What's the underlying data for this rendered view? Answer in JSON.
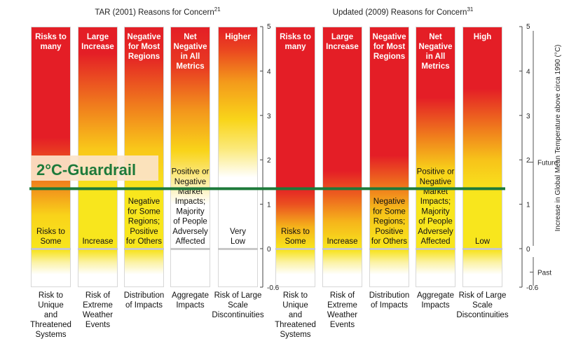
{
  "chart_data": {
    "type": "heatmap",
    "panels": [
      {
        "title": "TAR (2001) Reasons for Concern",
        "title_sup": "21",
        "columns": [
          {
            "label_lines": [
              "Risk to",
              "Unique",
              "and",
              "Threatened",
              "Systems"
            ],
            "top_text": [
              "Risks to",
              "many"
            ],
            "bottom_text": [
              "Risks to",
              "Some"
            ],
            "gradient": [
              {
                "t": 0.0,
                "c": "#e41e26"
              },
              {
                "t": 0.5,
                "c": "#e41e26"
              },
              {
                "t": 0.6,
                "c": "#eb4a1f"
              },
              {
                "t": 0.72,
                "c": "#f18c1c"
              },
              {
                "t": 0.85,
                "c": "#f9d31a"
              },
              {
                "t": 1.0,
                "c": "#f8e61d"
              }
            ]
          },
          {
            "label_lines": [
              "Risk of",
              "Extreme",
              "Weather",
              "Events"
            ],
            "top_text": [
              "Large",
              "Increase"
            ],
            "bottom_text": [
              "Increase"
            ],
            "gradient": [
              {
                "t": 0.0,
                "c": "#e41e26"
              },
              {
                "t": 0.12,
                "c": "#e41e26"
              },
              {
                "t": 0.35,
                "c": "#f07a1d"
              },
              {
                "t": 0.55,
                "c": "#f9c71a"
              },
              {
                "t": 0.75,
                "c": "#f8e61d"
              },
              {
                "t": 1.0,
                "c": "#f8e61d"
              }
            ]
          },
          {
            "label_lines": [
              "Distribution",
              "of Impacts"
            ],
            "top_text": [
              "Negative",
              "for Most",
              "Regions"
            ],
            "bottom_text": [
              "Negative",
              "for Some",
              "Regions;",
              "Positive",
              "for Others"
            ],
            "gradient": [
              {
                "t": 0.0,
                "c": "#e41e26"
              },
              {
                "t": 0.15,
                "c": "#e52a24"
              },
              {
                "t": 0.35,
                "c": "#f07a1d"
              },
              {
                "t": 0.55,
                "c": "#f9c71a"
              },
              {
                "t": 0.75,
                "c": "#f8e61d"
              },
              {
                "t": 1.0,
                "c": "#f8e61d"
              }
            ]
          },
          {
            "label_lines": [
              "Aggregate",
              "Impacts"
            ],
            "top_text": [
              "Net",
              "Negative",
              "in All",
              "Metrics"
            ],
            "bottom_text": [
              "Positive or",
              "Negative",
              "Market",
              "Impacts;",
              "Majority",
              "of People",
              "Adversely",
              "Affected"
            ],
            "gradient": [
              {
                "t": 0.0,
                "c": "#e41e26"
              },
              {
                "t": 0.18,
                "c": "#e83a22"
              },
              {
                "t": 0.38,
                "c": "#f3971c"
              },
              {
                "t": 0.56,
                "c": "#f9d41a"
              },
              {
                "t": 0.68,
                "c": "#fbe98a"
              },
              {
                "t": 0.8,
                "c": "#ffffff"
              },
              {
                "t": 1.0,
                "c": "#ffffff"
              }
            ]
          },
          {
            "label_lines": [
              "Risk of Large",
              "Scale",
              "Discontinuities"
            ],
            "top_text": [
              "Higher"
            ],
            "bottom_text": [
              "Very",
              "Low"
            ],
            "gradient": [
              {
                "t": 0.0,
                "c": "#e41e26"
              },
              {
                "t": 0.1,
                "c": "#ea4420"
              },
              {
                "t": 0.25,
                "c": "#f49a1b"
              },
              {
                "t": 0.42,
                "c": "#f9d51a"
              },
              {
                "t": 0.55,
                "c": "#fbe97a"
              },
              {
                "t": 0.68,
                "c": "#ffffff"
              },
              {
                "t": 1.0,
                "c": "#ffffff"
              }
            ]
          }
        ]
      },
      {
        "title": "Updated (2009) Reasons for Concern",
        "title_sup": "31",
        "columns": [
          {
            "label_lines": [
              "Risk to",
              "Unique",
              "and",
              "Threatened",
              "Systems"
            ],
            "top_text": [
              "Risks to",
              "many"
            ],
            "bottom_text": [
              "Risks to",
              "Some"
            ],
            "gradient": [
              {
                "t": 0.0,
                "c": "#e41e26"
              },
              {
                "t": 0.72,
                "c": "#e41e26"
              },
              {
                "t": 0.8,
                "c": "#eb5020"
              },
              {
                "t": 0.9,
                "c": "#f5b11b"
              },
              {
                "t": 1.0,
                "c": "#f8e61d"
              }
            ]
          },
          {
            "label_lines": [
              "Risk of",
              "Extreme",
              "Weather",
              "Events"
            ],
            "top_text": [
              "Large",
              "Increase"
            ],
            "bottom_text": [
              "Increase"
            ],
            "gradient": [
              {
                "t": 0.0,
                "c": "#e41e26"
              },
              {
                "t": 0.65,
                "c": "#e41e26"
              },
              {
                "t": 0.75,
                "c": "#ec5a1f"
              },
              {
                "t": 0.88,
                "c": "#f6b51b"
              },
              {
                "t": 1.0,
                "c": "#f8e61d"
              }
            ]
          },
          {
            "label_lines": [
              "Distribution",
              "of Impacts"
            ],
            "top_text": [
              "Negative",
              "for Most",
              "Regions"
            ],
            "bottom_text": [
              "Negative",
              "for Some",
              "Regions;",
              "Positive",
              "for Others"
            ],
            "gradient": [
              {
                "t": 0.0,
                "c": "#e41e26"
              },
              {
                "t": 0.58,
                "c": "#e41e26"
              },
              {
                "t": 0.7,
                "c": "#ee6a1e"
              },
              {
                "t": 0.84,
                "c": "#f7c41a"
              },
              {
                "t": 1.0,
                "c": "#f8e61d"
              }
            ]
          },
          {
            "label_lines": [
              "Aggregate",
              "Impacts"
            ],
            "top_text": [
              "Net",
              "Negative",
              "in All",
              "Metrics"
            ],
            "bottom_text": [
              "Positive or",
              "Negative",
              "Market",
              "Impacts;",
              "Majority",
              "of People",
              "Adversely",
              "Affected"
            ],
            "gradient": [
              {
                "t": 0.0,
                "c": "#e41e26"
              },
              {
                "t": 0.32,
                "c": "#e41e26"
              },
              {
                "t": 0.5,
                "c": "#f0801c"
              },
              {
                "t": 0.65,
                "c": "#f8d31a"
              },
              {
                "t": 0.8,
                "c": "#f8e61d"
              },
              {
                "t": 1.0,
                "c": "#f8e61d"
              }
            ]
          },
          {
            "label_lines": [
              "Risk of Large",
              "Scale",
              "Discontinuities"
            ],
            "top_text": [
              "High"
            ],
            "bottom_text": [
              "Low"
            ],
            "gradient": [
              {
                "t": 0.0,
                "c": "#e41e26"
              },
              {
                "t": 0.28,
                "c": "#e41e26"
              },
              {
                "t": 0.45,
                "c": "#ef761d"
              },
              {
                "t": 0.6,
                "c": "#f7c31a"
              },
              {
                "t": 0.75,
                "c": "#f8e61d"
              },
              {
                "t": 1.0,
                "c": "#f8e61d"
              }
            ]
          }
        ]
      }
    ],
    "y_axis": {
      "label": "Increase in Global Mean Temperature above circa 1990 (°C)",
      "ylim": [
        -0.6,
        5
      ],
      "ticks": [
        5,
        4,
        3,
        2,
        1,
        0,
        -0.6
      ],
      "tick_labels": [
        "5",
        "4",
        "3",
        "2",
        "1",
        "0",
        "-0.6"
      ],
      "future_label": "Future",
      "past_label": "Past"
    },
    "guardrail": {
      "label": "2°C-Guardrail",
      "value": 1.35,
      "line_color": "#1d7a3a",
      "text_color": "#1d7a3a"
    },
    "past_gradient": [
      {
        "t": 0.0,
        "c": "#f7e31c"
      },
      {
        "t": 0.5,
        "c": "#fbf2a5"
      },
      {
        "t": 1.0,
        "c": "#ffffff"
      }
    ],
    "colors": {
      "red": "#e41e26",
      "yellow": "#f8e61d",
      "white": "#ffffff",
      "divider": "#c8c8c8",
      "guardrail_box": "#fbe3c9"
    }
  }
}
